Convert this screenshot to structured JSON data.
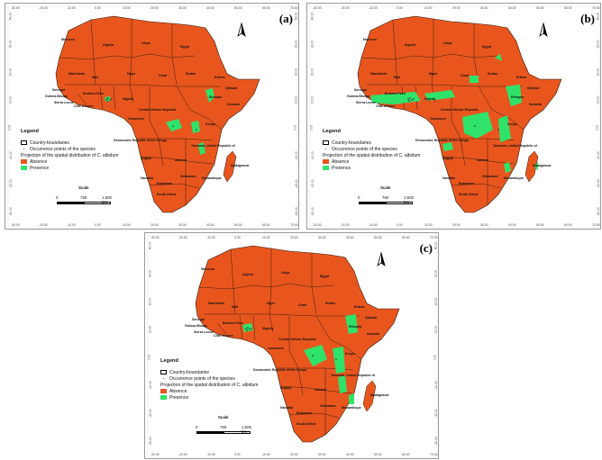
{
  "colors": {
    "absence": "#e8561e",
    "presence": "#2fe36a",
    "boundary": "#2a1a10",
    "ocean": "#ffffff"
  },
  "panels": [
    {
      "label": "(a)"
    },
    {
      "label": "(b)"
    },
    {
      "label": "(c)"
    }
  ],
  "x_ticks": [
    "-30.00",
    "-20.00",
    "-10.00",
    "0.00",
    "10.00",
    "20.00",
    "30.00",
    "40.00",
    "50.00",
    "60.00",
    "70.00"
  ],
  "y_ticks": [
    "40.00",
    "30.00",
    "20.00",
    "10.00",
    "0.00",
    "-10.00",
    "-20.00",
    "-30.00"
  ],
  "legend": {
    "title": "Legend",
    "boundaries": "Country-boundaries",
    "occurrence": "Occurrence points of the species",
    "projection": "Projection of the spatial distribution of C. albidum",
    "absence": "Absence",
    "presence": "Presence"
  },
  "scale": {
    "title": "Scale",
    "labels": [
      "0",
      "750",
      "1,500 km"
    ]
  },
  "countries": [
    "Morocco",
    "Algeria",
    "Libya",
    "Egypt",
    "Mauritania",
    "Mali",
    "Niger",
    "Chad",
    "Sudan",
    "Eritrea",
    "Djibouti",
    "Senegal",
    "Guinea-Bissau",
    "Sierra Leone",
    "Burkina Faso",
    "Côte d'Ivoire",
    "Nigeria",
    "Ethiopia",
    "Somalia",
    "Central African Republic",
    "Cameroon",
    "Kenya",
    "Democratic Republic of the Congo",
    "Tanzania, United Republic of",
    "Angola",
    "Zambia",
    "Namibia",
    "Zimbabwe",
    "Botswana",
    "Mozambique",
    "South Africa",
    "Madagascar"
  ],
  "occurrence_points": "present"
}
